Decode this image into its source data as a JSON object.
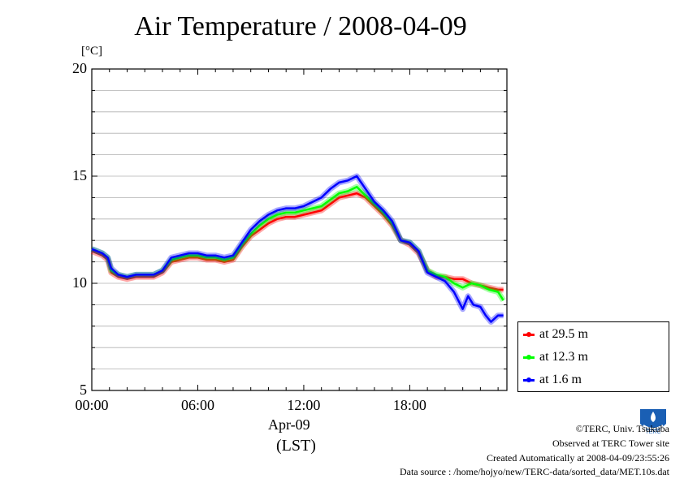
{
  "chart_data": {
    "type": "line",
    "title": "Air Temperature / 2008-04-09",
    "ylabel": "[°C]",
    "xlabel_date": "Apr-09",
    "xlabel_unit": "(LST)",
    "ylim": [
      5,
      20
    ],
    "xlim": [
      0,
      23.5
    ],
    "yticks": [
      "5",
      "10",
      "15",
      "20"
    ],
    "xticks": [
      {
        "value": 0,
        "label": "00:00"
      },
      {
        "value": 6,
        "label": "06:00"
      },
      {
        "value": 12,
        "label": "12:00"
      },
      {
        "value": 18,
        "label": "18:00"
      }
    ],
    "grid": true,
    "legend_position": "right-bottom-outside",
    "series": [
      {
        "name": "at 29.5 m",
        "color": "#ff0000",
        "x": [
          0,
          0.3,
          0.6,
          0.9,
          1.1,
          1.5,
          2,
          2.5,
          3,
          3.5,
          4,
          4.5,
          5,
          5.5,
          6,
          6.5,
          7,
          7.5,
          8,
          8.5,
          9,
          9.5,
          10,
          10.5,
          11,
          11.5,
          12,
          12.5,
          13,
          13.5,
          14,
          14.5,
          15,
          15.5,
          16,
          16.5,
          17,
          17.5,
          18,
          18.5,
          19,
          19.5,
          20,
          20.5,
          21,
          21.5,
          22,
          22.5,
          23,
          23.3
        ],
        "y": [
          11.5,
          11.4,
          11.3,
          11.1,
          10.5,
          10.3,
          10.2,
          10.3,
          10.3,
          10.3,
          10.5,
          11.0,
          11.1,
          11.2,
          11.2,
          11.1,
          11.1,
          11.0,
          11.1,
          11.7,
          12.2,
          12.5,
          12.8,
          13.0,
          13.1,
          13.1,
          13.2,
          13.3,
          13.4,
          13.7,
          14.0,
          14.1,
          14.2,
          14.0,
          13.6,
          13.2,
          12.7,
          12.0,
          11.8,
          11.4,
          10.6,
          10.3,
          10.3,
          10.2,
          10.2,
          10.0,
          9.9,
          9.8,
          9.7,
          9.7
        ]
      },
      {
        "name": "at 12.3 m",
        "color": "#00ff00",
        "x": [
          0,
          0.3,
          0.6,
          0.9,
          1.1,
          1.5,
          2,
          2.5,
          3,
          3.5,
          4,
          4.5,
          5,
          5.5,
          6,
          6.5,
          7,
          7.5,
          8,
          8.5,
          9,
          9.5,
          10,
          10.5,
          11,
          11.5,
          12,
          12.5,
          13,
          13.5,
          14,
          14.5,
          15,
          15.5,
          16,
          16.5,
          17,
          17.5,
          18,
          18.5,
          19,
          19.5,
          20,
          20.5,
          21,
          21.5,
          22,
          22.5,
          23,
          23.3
        ],
        "y": [
          11.6,
          11.5,
          11.4,
          11.2,
          10.6,
          10.4,
          10.3,
          10.4,
          10.4,
          10.4,
          10.6,
          11.1,
          11.2,
          11.3,
          11.3,
          11.2,
          11.2,
          11.1,
          11.2,
          11.8,
          12.3,
          12.7,
          13.0,
          13.2,
          13.3,
          13.3,
          13.4,
          13.5,
          13.6,
          13.9,
          14.2,
          14.3,
          14.5,
          14.1,
          13.7,
          13.3,
          12.8,
          12.0,
          11.9,
          11.5,
          10.6,
          10.4,
          10.3,
          10.0,
          9.8,
          10.0,
          9.9,
          9.7,
          9.6,
          9.2
        ]
      },
      {
        "name": "at 1.6 m",
        "color": "#0000ff",
        "x": [
          0,
          0.3,
          0.6,
          0.9,
          1.1,
          1.5,
          2,
          2.5,
          3,
          3.5,
          4,
          4.5,
          5,
          5.5,
          6,
          6.5,
          7,
          7.5,
          8,
          8.5,
          9,
          9.5,
          10,
          10.5,
          11,
          11.5,
          12,
          12.5,
          13,
          13.5,
          14,
          14.5,
          15,
          15.5,
          16,
          16.5,
          17,
          17.5,
          18,
          18.5,
          19,
          19.5,
          20,
          20.5,
          21,
          21.3,
          21.6,
          22,
          22.3,
          22.6,
          23,
          23.3
        ],
        "y": [
          11.6,
          11.5,
          11.4,
          11.2,
          10.7,
          10.4,
          10.3,
          10.4,
          10.4,
          10.4,
          10.6,
          11.2,
          11.3,
          11.4,
          11.4,
          11.3,
          11.3,
          11.2,
          11.3,
          11.9,
          12.5,
          12.9,
          13.2,
          13.4,
          13.5,
          13.5,
          13.6,
          13.8,
          14.0,
          14.4,
          14.7,
          14.8,
          15.0,
          14.4,
          13.8,
          13.4,
          12.9,
          12.0,
          11.9,
          11.5,
          10.5,
          10.3,
          10.1,
          9.6,
          8.8,
          9.4,
          9.0,
          8.9,
          8.5,
          8.2,
          8.5,
          8.5
        ]
      }
    ]
  },
  "credits": {
    "copyright": "©TERC, Univ. Tsukuba",
    "observed": "Observed at TERC Tower site",
    "created": "Created Automatically at 2008-04-09/23:55:26",
    "source": "Data source : /home/hojyo/new/TERC-data/sorted_data/MET.10s.dat",
    "logo_text": "TERC"
  }
}
